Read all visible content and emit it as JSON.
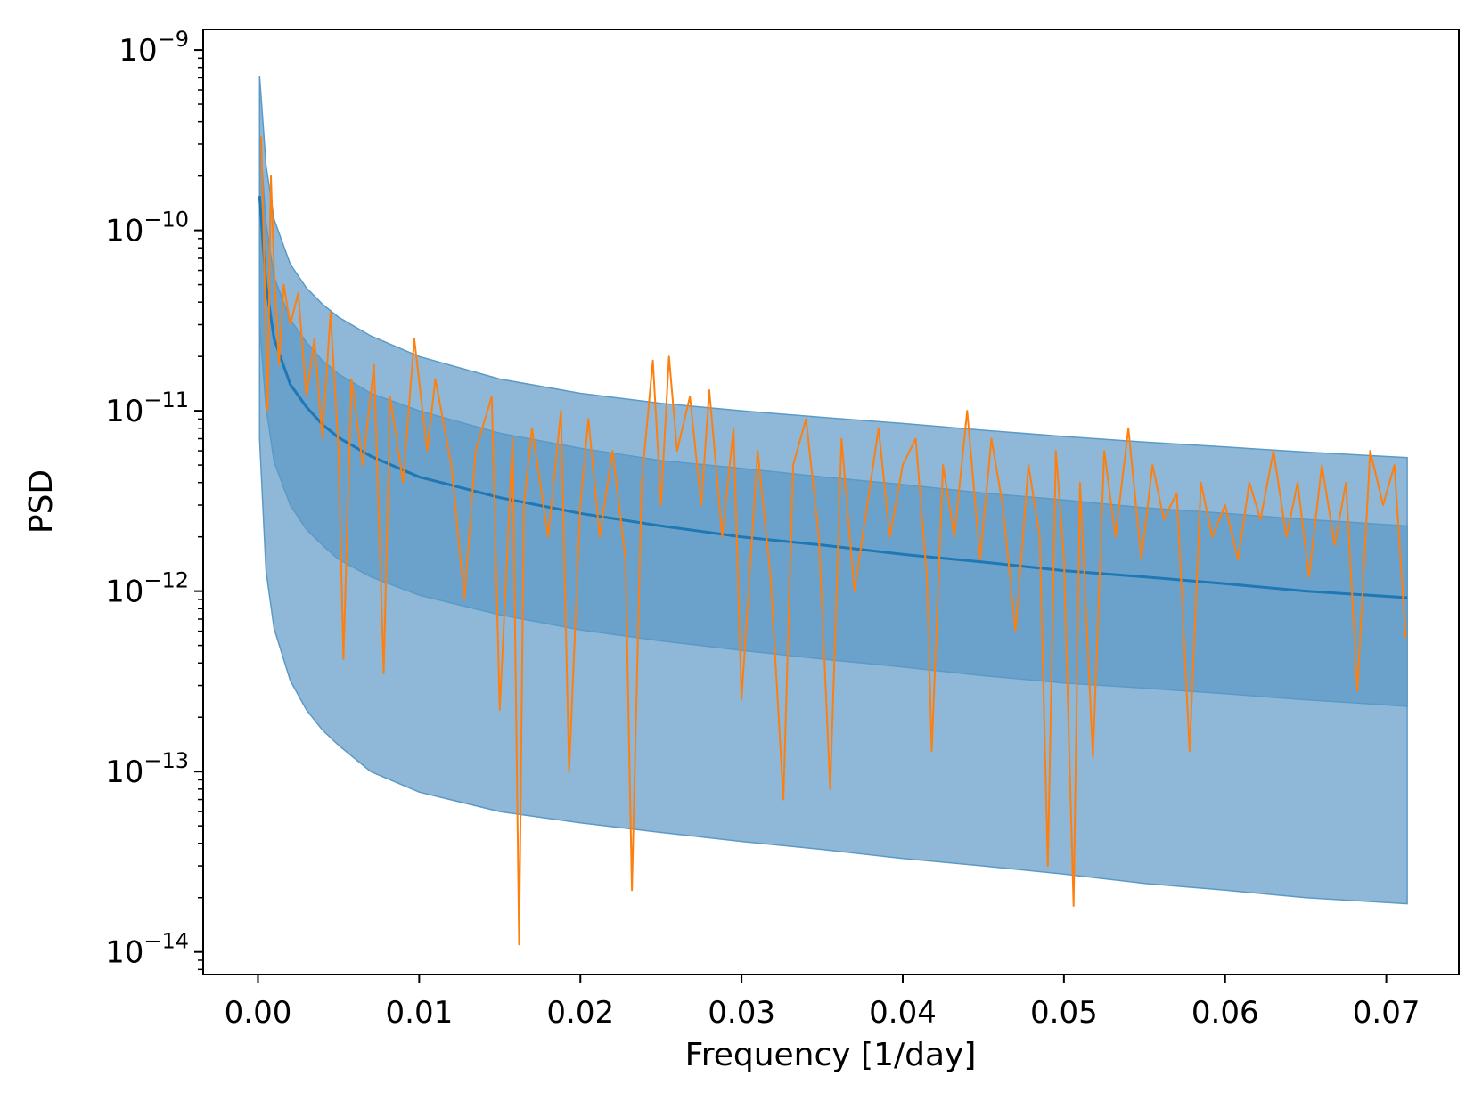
{
  "chart_data": {
    "type": "area",
    "title": "",
    "xlabel": "Frequency [1/day]",
    "ylabel": "PSD",
    "x_scale": "linear",
    "y_scale": "log",
    "xlim": [
      -0.0034,
      0.0745
    ],
    "ylim": [
      7.5e-15,
      1.3e-09
    ],
    "x_ticks": [
      "0.00",
      "0.01",
      "0.02",
      "0.03",
      "0.04",
      "0.05",
      "0.06",
      "0.07"
    ],
    "x_tick_values": [
      0,
      0.01,
      0.02,
      0.03,
      0.04,
      0.05,
      0.06,
      0.07
    ],
    "y_tick_values": [
      1e-09,
      1e-10,
      1e-11,
      1e-12,
      1e-13,
      1e-14
    ],
    "y_ticks": [
      {
        "base": "10",
        "exp": "−9"
      },
      {
        "base": "10",
        "exp": "−10"
      },
      {
        "base": "10",
        "exp": "−11"
      },
      {
        "base": "10",
        "exp": "−12"
      },
      {
        "base": "10",
        "exp": "−13"
      },
      {
        "base": "10",
        "exp": "−14"
      }
    ],
    "grid": false,
    "legend": "none",
    "colors": {
      "outer_band": "#8fb8d8",
      "inner_band": "#6aa2cb",
      "band_edge": "#5b9ac6",
      "median": "#1f77b4",
      "observed": "#ff7f0e"
    },
    "x": [
      0.0001,
      0.0005,
      0.001,
      0.002,
      0.003,
      0.004,
      0.005,
      0.007,
      0.01,
      0.015,
      0.02,
      0.025,
      0.03,
      0.035,
      0.04,
      0.045,
      0.05,
      0.055,
      0.06,
      0.065,
      0.0713
    ],
    "series": [
      {
        "role": "outer_upper",
        "values": [
          7.2e-10,
          2.3e-10,
          1.15e-10,
          6.5e-11,
          4.8e-11,
          3.9e-11,
          3.3e-11,
          2.6e-11,
          2e-11,
          1.5e-11,
          1.25e-11,
          1.1e-11,
          1e-11,
          9.2e-12,
          8.5e-12,
          7.8e-12,
          7.2e-12,
          6.7e-12,
          6.3e-12,
          5.9e-12,
          5.5e-12
        ]
      },
      {
        "role": "inner_upper",
        "values": [
          3.4e-10,
          1.1e-10,
          5.5e-11,
          3.2e-11,
          2.4e-11,
          1.9e-11,
          1.6e-11,
          1.25e-11,
          1e-11,
          7.5e-12,
          6.2e-12,
          5.3e-12,
          4.8e-12,
          4.3e-12,
          3.9e-12,
          3.5e-12,
          3.2e-12,
          2.9e-12,
          2.7e-12,
          2.5e-12,
          2.3e-12
        ]
      },
      {
        "role": "median",
        "values": [
          1.55e-10,
          5e-11,
          2.5e-11,
          1.4e-11,
          1.05e-11,
          8.4e-12,
          7.1e-12,
          5.6e-12,
          4.3e-12,
          3.3e-12,
          2.7e-12,
          2.3e-12,
          2e-12,
          1.8e-12,
          1.6e-12,
          1.45e-12,
          1.3e-12,
          1.2e-12,
          1.1e-12,
          1e-12,
          9.2e-13
        ]
      },
      {
        "role": "inner_lower",
        "values": [
          3e-11,
          1.05e-11,
          5.2e-12,
          3e-12,
          2.2e-12,
          1.8e-12,
          1.5e-12,
          1.2e-12,
          9.5e-13,
          7.4e-13,
          6.1e-13,
          5.3e-13,
          4.7e-13,
          4.2e-13,
          3.8e-13,
          3.4e-13,
          3.1e-13,
          2.9e-13,
          2.7e-13,
          2.5e-13,
          2.3e-13
        ]
      },
      {
        "role": "outer_lower",
        "values": [
          7e-12,
          1.3e-12,
          6.2e-13,
          3.2e-13,
          2.2e-13,
          1.7e-13,
          1.4e-13,
          1e-13,
          7.7e-14,
          6e-14,
          5.2e-14,
          4.6e-14,
          4.1e-14,
          3.7e-14,
          3.3e-14,
          3e-14,
          2.7e-14,
          2.4e-14,
          2.2e-14,
          2e-14,
          1.85e-14
        ]
      },
      {
        "role": "observed",
        "x": [
          0.0002,
          0.0004,
          0.0006,
          0.0008,
          0.001,
          0.0013,
          0.0016,
          0.002,
          0.0025,
          0.003,
          0.0035,
          0.004,
          0.0045,
          0.005,
          0.0053,
          0.0058,
          0.0065,
          0.0072,
          0.0078,
          0.0082,
          0.009,
          0.0097,
          0.0105,
          0.011,
          0.012,
          0.0128,
          0.0135,
          0.0145,
          0.015,
          0.0158,
          0.0162,
          0.0165,
          0.017,
          0.018,
          0.0188,
          0.0193,
          0.02,
          0.0205,
          0.0212,
          0.022,
          0.0228,
          0.0232,
          0.0238,
          0.0245,
          0.025,
          0.0255,
          0.026,
          0.0268,
          0.0275,
          0.028,
          0.0288,
          0.0295,
          0.03,
          0.031,
          0.0318,
          0.0326,
          0.0332,
          0.034,
          0.0348,
          0.0355,
          0.0362,
          0.037,
          0.0378,
          0.0385,
          0.0392,
          0.04,
          0.0408,
          0.0415,
          0.0418,
          0.0425,
          0.0432,
          0.044,
          0.0448,
          0.0455,
          0.0462,
          0.047,
          0.0478,
          0.0485,
          0.049,
          0.0495,
          0.05,
          0.0506,
          0.051,
          0.0518,
          0.0525,
          0.0532,
          0.054,
          0.0548,
          0.0555,
          0.0562,
          0.057,
          0.0578,
          0.0585,
          0.0592,
          0.06,
          0.0608,
          0.0615,
          0.0622,
          0.063,
          0.0638,
          0.0645,
          0.0652,
          0.066,
          0.0668,
          0.0675,
          0.0682,
          0.069,
          0.0698,
          0.0705,
          0.0712
        ],
        "values": [
          3.3e-10,
          6e-11,
          1e-11,
          2e-10,
          6e-11,
          1.8e-11,
          5e-11,
          3e-11,
          4.5e-11,
          1.2e-11,
          2.5e-11,
          7e-12,
          3.5e-11,
          6e-12,
          4.2e-13,
          1.5e-11,
          5e-12,
          1.8e-11,
          3.5e-13,
          1.2e-11,
          4e-12,
          2.5e-11,
          6e-12,
          1.5e-11,
          5e-12,
          9e-13,
          6e-12,
          1.2e-11,
          2.2e-13,
          7e-12,
          1.1e-14,
          3e-12,
          8e-12,
          2e-12,
          1e-11,
          1e-13,
          3e-12,
          9e-12,
          2e-12,
          6e-12,
          1.5e-12,
          2.2e-14,
          4e-12,
          1.9e-11,
          3e-12,
          2e-11,
          6e-12,
          1.2e-11,
          3e-12,
          1.3e-11,
          2e-12,
          8e-12,
          2.5e-13,
          6e-12,
          1.2e-12,
          7e-14,
          5e-12,
          9e-12,
          2e-12,
          8e-14,
          7e-12,
          1e-12,
          3e-12,
          8e-12,
          2e-12,
          5e-12,
          7e-12,
          1.2e-12,
          1.3e-13,
          5e-12,
          2e-12,
          1e-11,
          1.5e-12,
          7e-12,
          3e-12,
          6e-13,
          5e-12,
          2e-12,
          3e-14,
          6e-12,
          1.5e-12,
          1.8e-14,
          4e-12,
          1.2e-13,
          6e-12,
          2e-12,
          8e-12,
          1.5e-12,
          5e-12,
          2.5e-12,
          3.5e-12,
          1.3e-13,
          4e-12,
          2e-12,
          3e-12,
          1.5e-12,
          4e-12,
          2.5e-12,
          6e-12,
          2e-12,
          4e-12,
          1.2e-12,
          5e-12,
          1.8e-12,
          4e-12,
          2.8e-13,
          6e-12,
          3e-12,
          5e-12,
          5.5e-13
        ]
      }
    ]
  }
}
